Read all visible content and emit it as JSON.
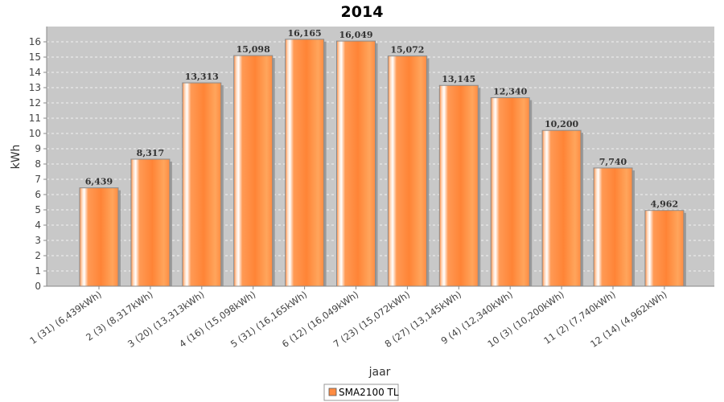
{
  "chart_data": {
    "type": "bar",
    "title": "2014",
    "xlabel": "jaar",
    "ylabel": "kWh",
    "ylim": [
      0,
      17
    ],
    "yticks": [
      0,
      1,
      2,
      3,
      4,
      5,
      6,
      7,
      8,
      9,
      10,
      11,
      12,
      13,
      14,
      15,
      16
    ],
    "grid": true,
    "legend_position": "bottom-center",
    "categories": [
      "1 (31)  (6,439kWh)",
      "2 (3)  (8,317kWh)",
      "3 (20)  (13,313kWh)",
      "4 (16)  (15,098kWh)",
      "5 (31)  (16,165kWh)",
      "6 (12)  (16,049kWh)",
      "7 (23)  (15,072kWh)",
      "8 (27)  (13,145kWh)",
      "9 (4)  (12,340kWh)",
      "10 (3)  (10,200kWh)",
      "11 (2)  (7,740kWh)",
      "12 (14)  (4,962kWh)"
    ],
    "series": [
      {
        "name": "SMA2100 TL",
        "color": "#ff8c42",
        "values": [
          6.439,
          8.317,
          13.313,
          15.098,
          16.165,
          16.049,
          15.072,
          13.145,
          12.34,
          10.2,
          7.74,
          4.962
        ],
        "labels": [
          "6,439",
          "8,317",
          "13,313",
          "15,098",
          "16,165",
          "16,049",
          "15,072",
          "13,145",
          "12,340",
          "10,200",
          "7,740",
          "4,962"
        ]
      }
    ]
  }
}
